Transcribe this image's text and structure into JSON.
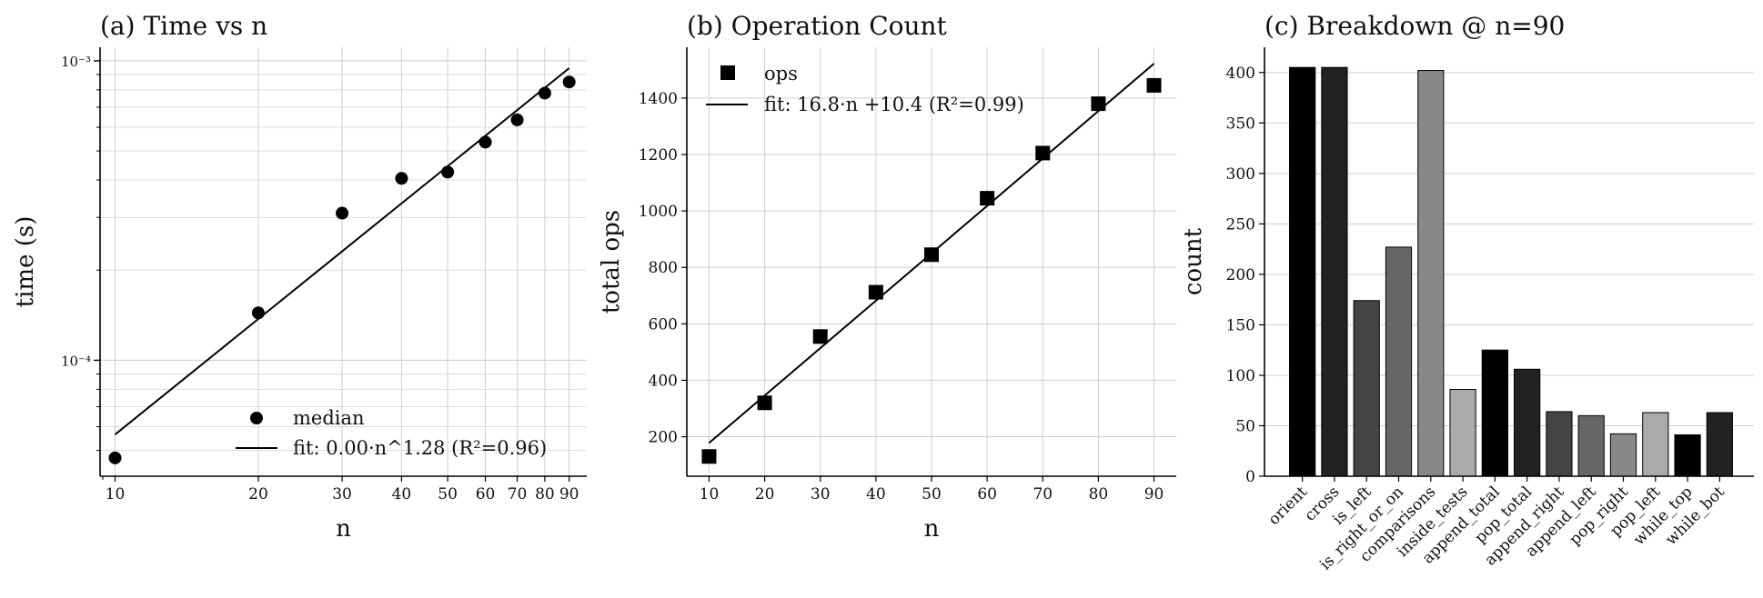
{
  "chart_data": [
    {
      "id": "a",
      "type": "scatter",
      "title": "(a) Time vs n",
      "xlabel": "n",
      "ylabel": "time (s)",
      "xscale": "log",
      "yscale": "log",
      "xlim": [
        9.3,
        98
      ],
      "ylim": [
        4.1e-05,
        0.00111
      ],
      "xticks": [
        10,
        20,
        30,
        40,
        50,
        60,
        70,
        80,
        90
      ],
      "xtick_labels": [
        "10",
        "20",
        "30",
        "40",
        "50",
        "60",
        "70",
        "80",
        "90"
      ],
      "yticks": [
        0.0001,
        0.001
      ],
      "ytick_labels": [
        "10⁻⁴",
        "10⁻³"
      ],
      "grid": true,
      "legend_position": "lower-right",
      "series": [
        {
          "name": "median",
          "kind": "points",
          "marker": "circle",
          "color": "#000000",
          "x": [
            10,
            20,
            30,
            40,
            50,
            60,
            70,
            80,
            90
          ],
          "y": [
            4.72e-05,
            0.000144,
            0.00031,
            0.000405,
            0.000425,
            0.000535,
            0.000635,
            0.00078,
            0.00085
          ]
        },
        {
          "name": "fit: 0.00·n^1.28  (R²=0.96)",
          "kind": "line",
          "color": "#000000",
          "x": [
            10,
            90
          ],
          "y": [
            5.65e-05,
            0.000945
          ]
        }
      ]
    },
    {
      "id": "b",
      "type": "scatter",
      "title": "(b) Operation Count",
      "xlabel": "n",
      "ylabel": "total ops",
      "xlim": [
        6,
        94
      ],
      "ylim": [
        60,
        1580
      ],
      "xticks": [
        10,
        20,
        30,
        40,
        50,
        60,
        70,
        80,
        90
      ],
      "yticks": [
        200,
        400,
        600,
        800,
        1000,
        1200,
        1400
      ],
      "grid": true,
      "legend_position": "upper-left",
      "series": [
        {
          "name": "ops",
          "kind": "points",
          "marker": "square",
          "color": "#000000",
          "x": [
            10,
            20,
            30,
            40,
            50,
            60,
            70,
            80,
            90
          ],
          "y": [
            130,
            320,
            555,
            712,
            845,
            1045,
            1205,
            1380,
            1445
          ]
        },
        {
          "name": "fit: 16.8·n +10.4  (R²=0.99)",
          "kind": "line",
          "color": "#000000",
          "x": [
            10,
            90
          ],
          "y": [
            178,
            1522
          ]
        }
      ]
    },
    {
      "id": "c",
      "type": "bar",
      "title": "(c) Breakdown @ n=90",
      "xlabel": "",
      "ylabel": "count",
      "ylim": [
        0,
        425
      ],
      "yticks": [
        0,
        50,
        100,
        150,
        200,
        250,
        300,
        350,
        400
      ],
      "grid": true,
      "categories": [
        "orient",
        "cross",
        "is_left",
        "is_right_or_on",
        "comparisons",
        "inside_tests",
        "append_total",
        "pop_total",
        "append_right",
        "append_left",
        "pop_right",
        "pop_left",
        "while_top",
        "while_bot"
      ],
      "values": [
        405,
        405,
        174,
        227,
        402,
        86,
        125,
        106,
        64,
        60,
        42,
        63,
        41,
        63
      ],
      "colors": [
        "#000000",
        "#222222",
        "#444444",
        "#666666",
        "#888888",
        "#aaaaaa",
        "#000000",
        "#222222",
        "#444444",
        "#666666",
        "#888888",
        "#aaaaaa",
        "#000000",
        "#222222"
      ]
    }
  ]
}
